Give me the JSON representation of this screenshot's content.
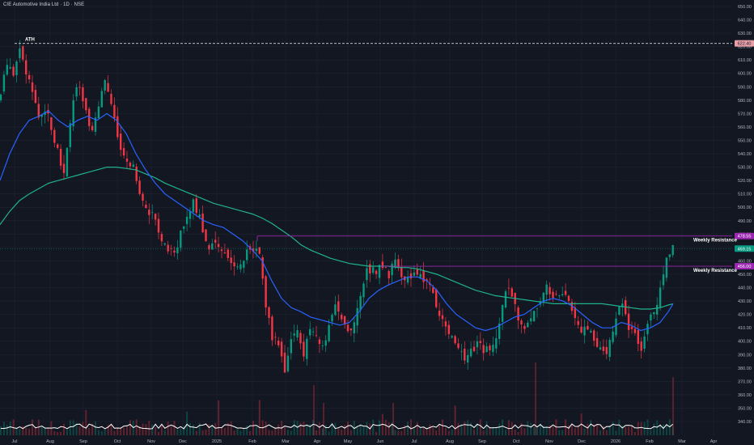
{
  "header": {
    "title": "CIE Automotive India Ltd · 1D · NSE"
  },
  "chart_data": {
    "type": "candlestick",
    "title": "CIE Automotive India Ltd · 1D · NSE",
    "ylim": [
      334,
      652
    ],
    "y_ticks": [
      340,
      350,
      360,
      370,
      380,
      390,
      400,
      410,
      420,
      430,
      440,
      450,
      460,
      470,
      480,
      490,
      500,
      510,
      520,
      530,
      540,
      550,
      560,
      570,
      580,
      590,
      600,
      610,
      620,
      630,
      640,
      650
    ],
    "x_tick_labels": [
      "Jul",
      "Aug",
      "Sep",
      "Oct",
      "Nov",
      "Dec",
      "2025",
      "Feb",
      "Mar",
      "Apr",
      "May",
      "Jun",
      "Jul",
      "Aug",
      "Sep",
      "Oct",
      "Nov",
      "Dec",
      "2026",
      "Feb",
      "Mar",
      "Apr"
    ],
    "price_tags": [
      {
        "value": "622.40",
        "color": "#e8a0a8"
      },
      {
        "value": "478.55",
        "color": "#9c27b0"
      },
      {
        "value": "469.15",
        "color": "#089981"
      },
      {
        "value": "456.00",
        "color": "#9c27b0"
      }
    ],
    "annotations": [
      {
        "label": "ATH",
        "value": 622.4
      },
      {
        "label": "Weekly Resistance",
        "value": 478.55
      },
      {
        "label": "Weekly Resistance",
        "value": 456.0
      }
    ],
    "close_path": [
      [
        0,
        580
      ],
      [
        8,
        610
      ],
      [
        16,
        595
      ],
      [
        24,
        622
      ],
      [
        32,
        598
      ],
      [
        40,
        588
      ],
      [
        48,
        565
      ],
      [
        56,
        575
      ],
      [
        64,
        560
      ],
      [
        72,
        540
      ],
      [
        80,
        525
      ],
      [
        88,
        570
      ],
      [
        96,
        590
      ],
      [
        104,
        575
      ],
      [
        112,
        560
      ],
      [
        120,
        565
      ],
      [
        128,
        595
      ],
      [
        136,
        580
      ],
      [
        144,
        555
      ],
      [
        152,
        535
      ],
      [
        160,
        535
      ],
      [
        168,
        525
      ],
      [
        176,
        505
      ],
      [
        184,
        495
      ],
      [
        192,
        490
      ],
      [
        200,
        478
      ],
      [
        208,
        470
      ],
      [
        216,
        465
      ],
      [
        224,
        482
      ],
      [
        232,
        495
      ],
      [
        240,
        505
      ],
      [
        248,
        488
      ],
      [
        256,
        470
      ],
      [
        264,
        478
      ],
      [
        272,
        468
      ],
      [
        280,
        460
      ],
      [
        288,
        460
      ],
      [
        296,
        458
      ],
      [
        304,
        465
      ],
      [
        312,
        470
      ],
      [
        320,
        465
      ],
      [
        328,
        430
      ],
      [
        336,
        405
      ],
      [
        344,
        400
      ],
      [
        352,
        380
      ],
      [
        360,
        400
      ],
      [
        368,
        410
      ],
      [
        376,
        390
      ],
      [
        384,
        412
      ],
      [
        392,
        400
      ],
      [
        400,
        395
      ],
      [
        408,
        418
      ],
      [
        416,
        425
      ],
      [
        424,
        410
      ],
      [
        432,
        405
      ],
      [
        440,
        415
      ],
      [
        448,
        445
      ],
      [
        456,
        455
      ],
      [
        464,
        452
      ],
      [
        472,
        455
      ],
      [
        480,
        450
      ],
      [
        488,
        460
      ],
      [
        496,
        445
      ],
      [
        504,
        452
      ],
      [
        512,
        448
      ],
      [
        520,
        448
      ],
      [
        528,
        445
      ],
      [
        536,
        432
      ],
      [
        544,
        420
      ],
      [
        552,
        405
      ],
      [
        560,
        400
      ],
      [
        568,
        395
      ],
      [
        576,
        388
      ],
      [
        584,
        395
      ],
      [
        592,
        400
      ],
      [
        600,
        392
      ],
      [
        608,
        398
      ],
      [
        616,
        410
      ],
      [
        624,
        442
      ],
      [
        632,
        432
      ],
      [
        640,
        420
      ],
      [
        648,
        410
      ],
      [
        656,
        418
      ],
      [
        664,
        428
      ],
      [
        672,
        440
      ],
      [
        680,
        438
      ],
      [
        688,
        432
      ],
      [
        696,
        435
      ],
      [
        704,
        430
      ],
      [
        712,
        415
      ],
      [
        720,
        408
      ],
      [
        728,
        412
      ],
      [
        736,
        402
      ],
      [
        744,
        392
      ],
      [
        752,
        395
      ],
      [
        760,
        418
      ],
      [
        768,
        432
      ],
      [
        776,
        408
      ],
      [
        784,
        405
      ],
      [
        792,
        395
      ],
      [
        800,
        412
      ],
      [
        808,
        420
      ],
      [
        816,
        440
      ],
      [
        824,
        460
      ],
      [
        832,
        469
      ]
    ],
    "ma_fast_path": [
      [
        0,
        520
      ],
      [
        12,
        540
      ],
      [
        24,
        555
      ],
      [
        36,
        565
      ],
      [
        48,
        568
      ],
      [
        60,
        572
      ],
      [
        72,
        565
      ],
      [
        84,
        560
      ],
      [
        96,
        565
      ],
      [
        108,
        568
      ],
      [
        120,
        565
      ],
      [
        132,
        570
      ],
      [
        144,
        565
      ],
      [
        156,
        555
      ],
      [
        168,
        540
      ],
      [
        180,
        528
      ],
      [
        192,
        518
      ],
      [
        204,
        510
      ],
      [
        216,
        505
      ],
      [
        228,
        500
      ],
      [
        240,
        495
      ],
      [
        252,
        490
      ],
      [
        264,
        487
      ],
      [
        276,
        485
      ],
      [
        288,
        480
      ],
      [
        300,
        475
      ],
      [
        312,
        468
      ],
      [
        324,
        460
      ],
      [
        336,
        445
      ],
      [
        348,
        432
      ],
      [
        360,
        425
      ],
      [
        372,
        422
      ],
      [
        384,
        418
      ],
      [
        396,
        416
      ],
      [
        408,
        414
      ],
      [
        420,
        412
      ],
      [
        432,
        414
      ],
      [
        444,
        422
      ],
      [
        456,
        432
      ],
      [
        468,
        438
      ],
      [
        480,
        442
      ],
      [
        492,
        445
      ],
      [
        504,
        448
      ],
      [
        516,
        448
      ],
      [
        528,
        445
      ],
      [
        540,
        438
      ],
      [
        552,
        428
      ],
      [
        564,
        420
      ],
      [
        576,
        415
      ],
      [
        588,
        410
      ],
      [
        600,
        408
      ],
      [
        612,
        410
      ],
      [
        624,
        414
      ],
      [
        636,
        418
      ],
      [
        648,
        420
      ],
      [
        660,
        425
      ],
      [
        672,
        430
      ],
      [
        684,
        432
      ],
      [
        696,
        430
      ],
      [
        708,
        426
      ],
      [
        720,
        420
      ],
      [
        732,
        414
      ],
      [
        744,
        410
      ],
      [
        756,
        410
      ],
      [
        768,
        414
      ],
      [
        780,
        412
      ],
      [
        792,
        408
      ],
      [
        804,
        410
      ],
      [
        816,
        414
      ],
      [
        826,
        422
      ],
      [
        832,
        428
      ]
    ],
    "ma_slow_path": [
      [
        0,
        487
      ],
      [
        12,
        497
      ],
      [
        24,
        505
      ],
      [
        36,
        510
      ],
      [
        48,
        514
      ],
      [
        60,
        518
      ],
      [
        72,
        520
      ],
      [
        84,
        522
      ],
      [
        96,
        524
      ],
      [
        108,
        526
      ],
      [
        120,
        528
      ],
      [
        132,
        530
      ],
      [
        144,
        530
      ],
      [
        156,
        529
      ],
      [
        168,
        528
      ],
      [
        180,
        525
      ],
      [
        192,
        522
      ],
      [
        204,
        518
      ],
      [
        216,
        515
      ],
      [
        228,
        512
      ],
      [
        240,
        509
      ],
      [
        252,
        506
      ],
      [
        264,
        503
      ],
      [
        276,
        501
      ],
      [
        288,
        499
      ],
      [
        300,
        497
      ],
      [
        312,
        495
      ],
      [
        324,
        492
      ],
      [
        336,
        488
      ],
      [
        348,
        483
      ],
      [
        360,
        478
      ],
      [
        372,
        472
      ],
      [
        384,
        468
      ],
      [
        396,
        465
      ],
      [
        408,
        462
      ],
      [
        420,
        460
      ],
      [
        432,
        458
      ],
      [
        444,
        457
      ],
      [
        456,
        456
      ],
      [
        468,
        456
      ],
      [
        480,
        456
      ],
      [
        492,
        455
      ],
      [
        504,
        455
      ],
      [
        516,
        454
      ],
      [
        528,
        452
      ],
      [
        540,
        450
      ],
      [
        552,
        447
      ],
      [
        564,
        444
      ],
      [
        576,
        441
      ],
      [
        588,
        438
      ],
      [
        600,
        436
      ],
      [
        612,
        434
      ],
      [
        624,
        433
      ],
      [
        636,
        432
      ],
      [
        648,
        431
      ],
      [
        660,
        430
      ],
      [
        672,
        429
      ],
      [
        684,
        428
      ],
      [
        696,
        428
      ],
      [
        708,
        428
      ],
      [
        720,
        428
      ],
      [
        732,
        428
      ],
      [
        744,
        428
      ],
      [
        756,
        427
      ],
      [
        768,
        426
      ],
      [
        780,
        425
      ],
      [
        792,
        424
      ],
      [
        804,
        424
      ],
      [
        816,
        425
      ],
      [
        826,
        427
      ],
      [
        832,
        428
      ]
    ],
    "series_colors": {
      "up": "#089981",
      "down": "#f23645",
      "ma_fast": "#2962ff",
      "ma_slow": "#20b28c",
      "volume_line": "#ffffff",
      "resistance": "#9c27b0",
      "ath_line": "#d1d4dc"
    }
  }
}
